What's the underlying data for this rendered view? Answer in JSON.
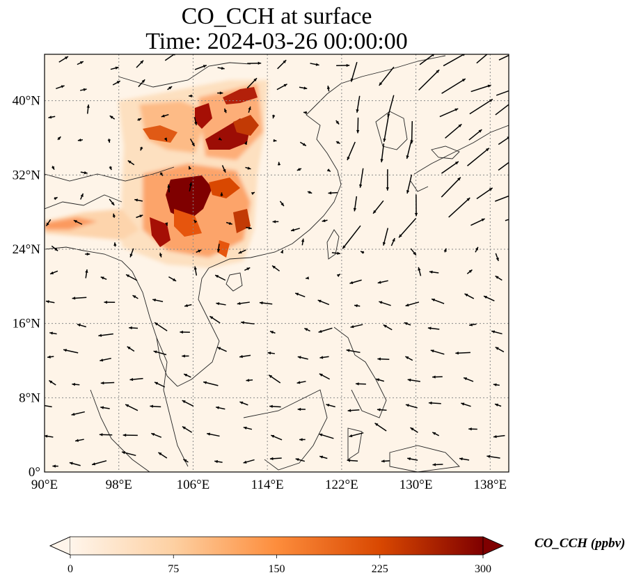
{
  "title": {
    "line1": "CO_CCH at surface",
    "line2": "Time: 2024-03-26 00:00:00"
  },
  "map": {
    "lon_ticks": [
      {
        "value": 90,
        "label": "90°E"
      },
      {
        "value": 98,
        "label": "98°E"
      },
      {
        "value": 106,
        "label": "106°E"
      },
      {
        "value": 114,
        "label": "114°E"
      },
      {
        "value": 122,
        "label": "122°E"
      },
      {
        "value": 130,
        "label": "130°E"
      },
      {
        "value": 138,
        "label": "138°E"
      }
    ],
    "lat_ticks": [
      {
        "value": 0,
        "label": "0°"
      },
      {
        "value": 8,
        "label": "8°N"
      },
      {
        "value": 16,
        "label": "16°N"
      },
      {
        "value": 24,
        "label": "24°N"
      },
      {
        "value": 32,
        "label": "32°N"
      },
      {
        "value": 40,
        "label": "40°N"
      }
    ],
    "lon_range": [
      90,
      140
    ],
    "lat_range": [
      0,
      45
    ],
    "gridlines": true,
    "wind_vectors": true
  },
  "colorbar": {
    "title": "CO_CCH (ppbv)",
    "ticks": [
      "0",
      "75",
      "150",
      "225",
      "300"
    ],
    "range": [
      0,
      300
    ],
    "extend": "both",
    "colormap": [
      "#fff5eb",
      "#fdd0a2",
      "#fd8d3c",
      "#d94801",
      "#7f0000"
    ]
  },
  "colors": {
    "background_field": "#fef4e8",
    "high": "#7f0000",
    "coast": "#222222",
    "grid": "#888888"
  }
}
